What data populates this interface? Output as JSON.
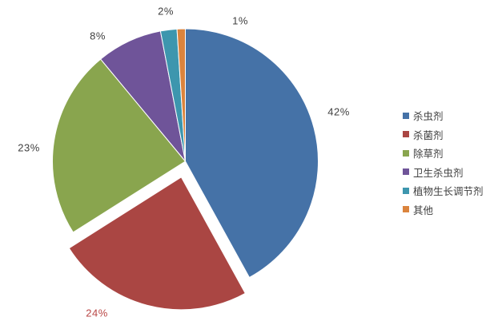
{
  "chart_data": {
    "type": "pie",
    "title": "",
    "legend_position": "right",
    "direction": "clockwise",
    "start_angle_deg": 0,
    "background_color": "#FFFFFF",
    "label_text_color": "#3F3F3F",
    "series": [
      {
        "label": "杀虫剂",
        "value": 42,
        "data_label": "42%",
        "color": "#4572A7",
        "exploded": false,
        "label_color": "#3F3F3F"
      },
      {
        "label": "杀菌剂",
        "value": 24,
        "data_label": "24%",
        "color": "#AA4643",
        "exploded": true,
        "label_color": "#B94645"
      },
      {
        "label": "除草剂",
        "value": 23,
        "data_label": "23%",
        "color": "#89A54E",
        "exploded": false,
        "label_color": "#3F3F3F"
      },
      {
        "label": "卫生杀虫剂",
        "value": 8,
        "data_label": "8%",
        "color": "#6F5499",
        "exploded": false,
        "label_color": "#3F3F3F"
      },
      {
        "label": "植物生长调节剂",
        "value": 2,
        "data_label": "2%",
        "color": "#3D96AE",
        "exploded": false,
        "label_color": "#3F3F3F"
      },
      {
        "label": "其他",
        "value": 1,
        "data_label": "1%",
        "color": "#DB843D",
        "exploded": false,
        "label_color": "#3F3F3F"
      }
    ]
  }
}
